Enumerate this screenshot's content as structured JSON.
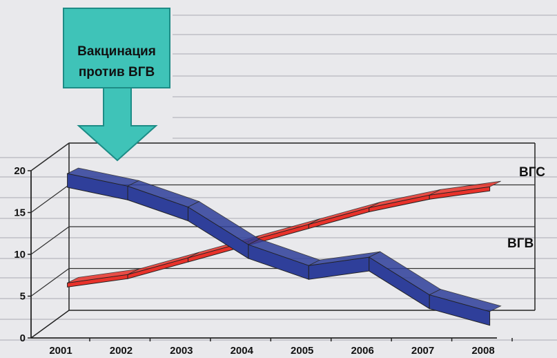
{
  "chart_data": {
    "type": "line",
    "style": "3d-ribbon",
    "categories": [
      "2001",
      "2002",
      "2003",
      "2004",
      "2005",
      "2006",
      "2007",
      "2008"
    ],
    "yticks": [
      "0",
      "5",
      "10",
      "15",
      "20"
    ],
    "ylim": [
      0,
      20
    ],
    "grid": true,
    "series": [
      {
        "name": "ВГС",
        "color": "#e8322a",
        "values": [
          6.5,
          7.5,
          9.5,
          11.5,
          13.5,
          15.5,
          17,
          18
        ]
      },
      {
        "name": "ВГВ",
        "color": "#2f3f9a",
        "values": [
          19,
          17.5,
          15,
          10.5,
          8,
          9,
          4.5,
          2.5
        ]
      }
    ],
    "annotation": {
      "lines": [
        "Вакцинация",
        "против ВГВ"
      ],
      "fill": "#3fc3b8",
      "points_to": "2002"
    }
  }
}
